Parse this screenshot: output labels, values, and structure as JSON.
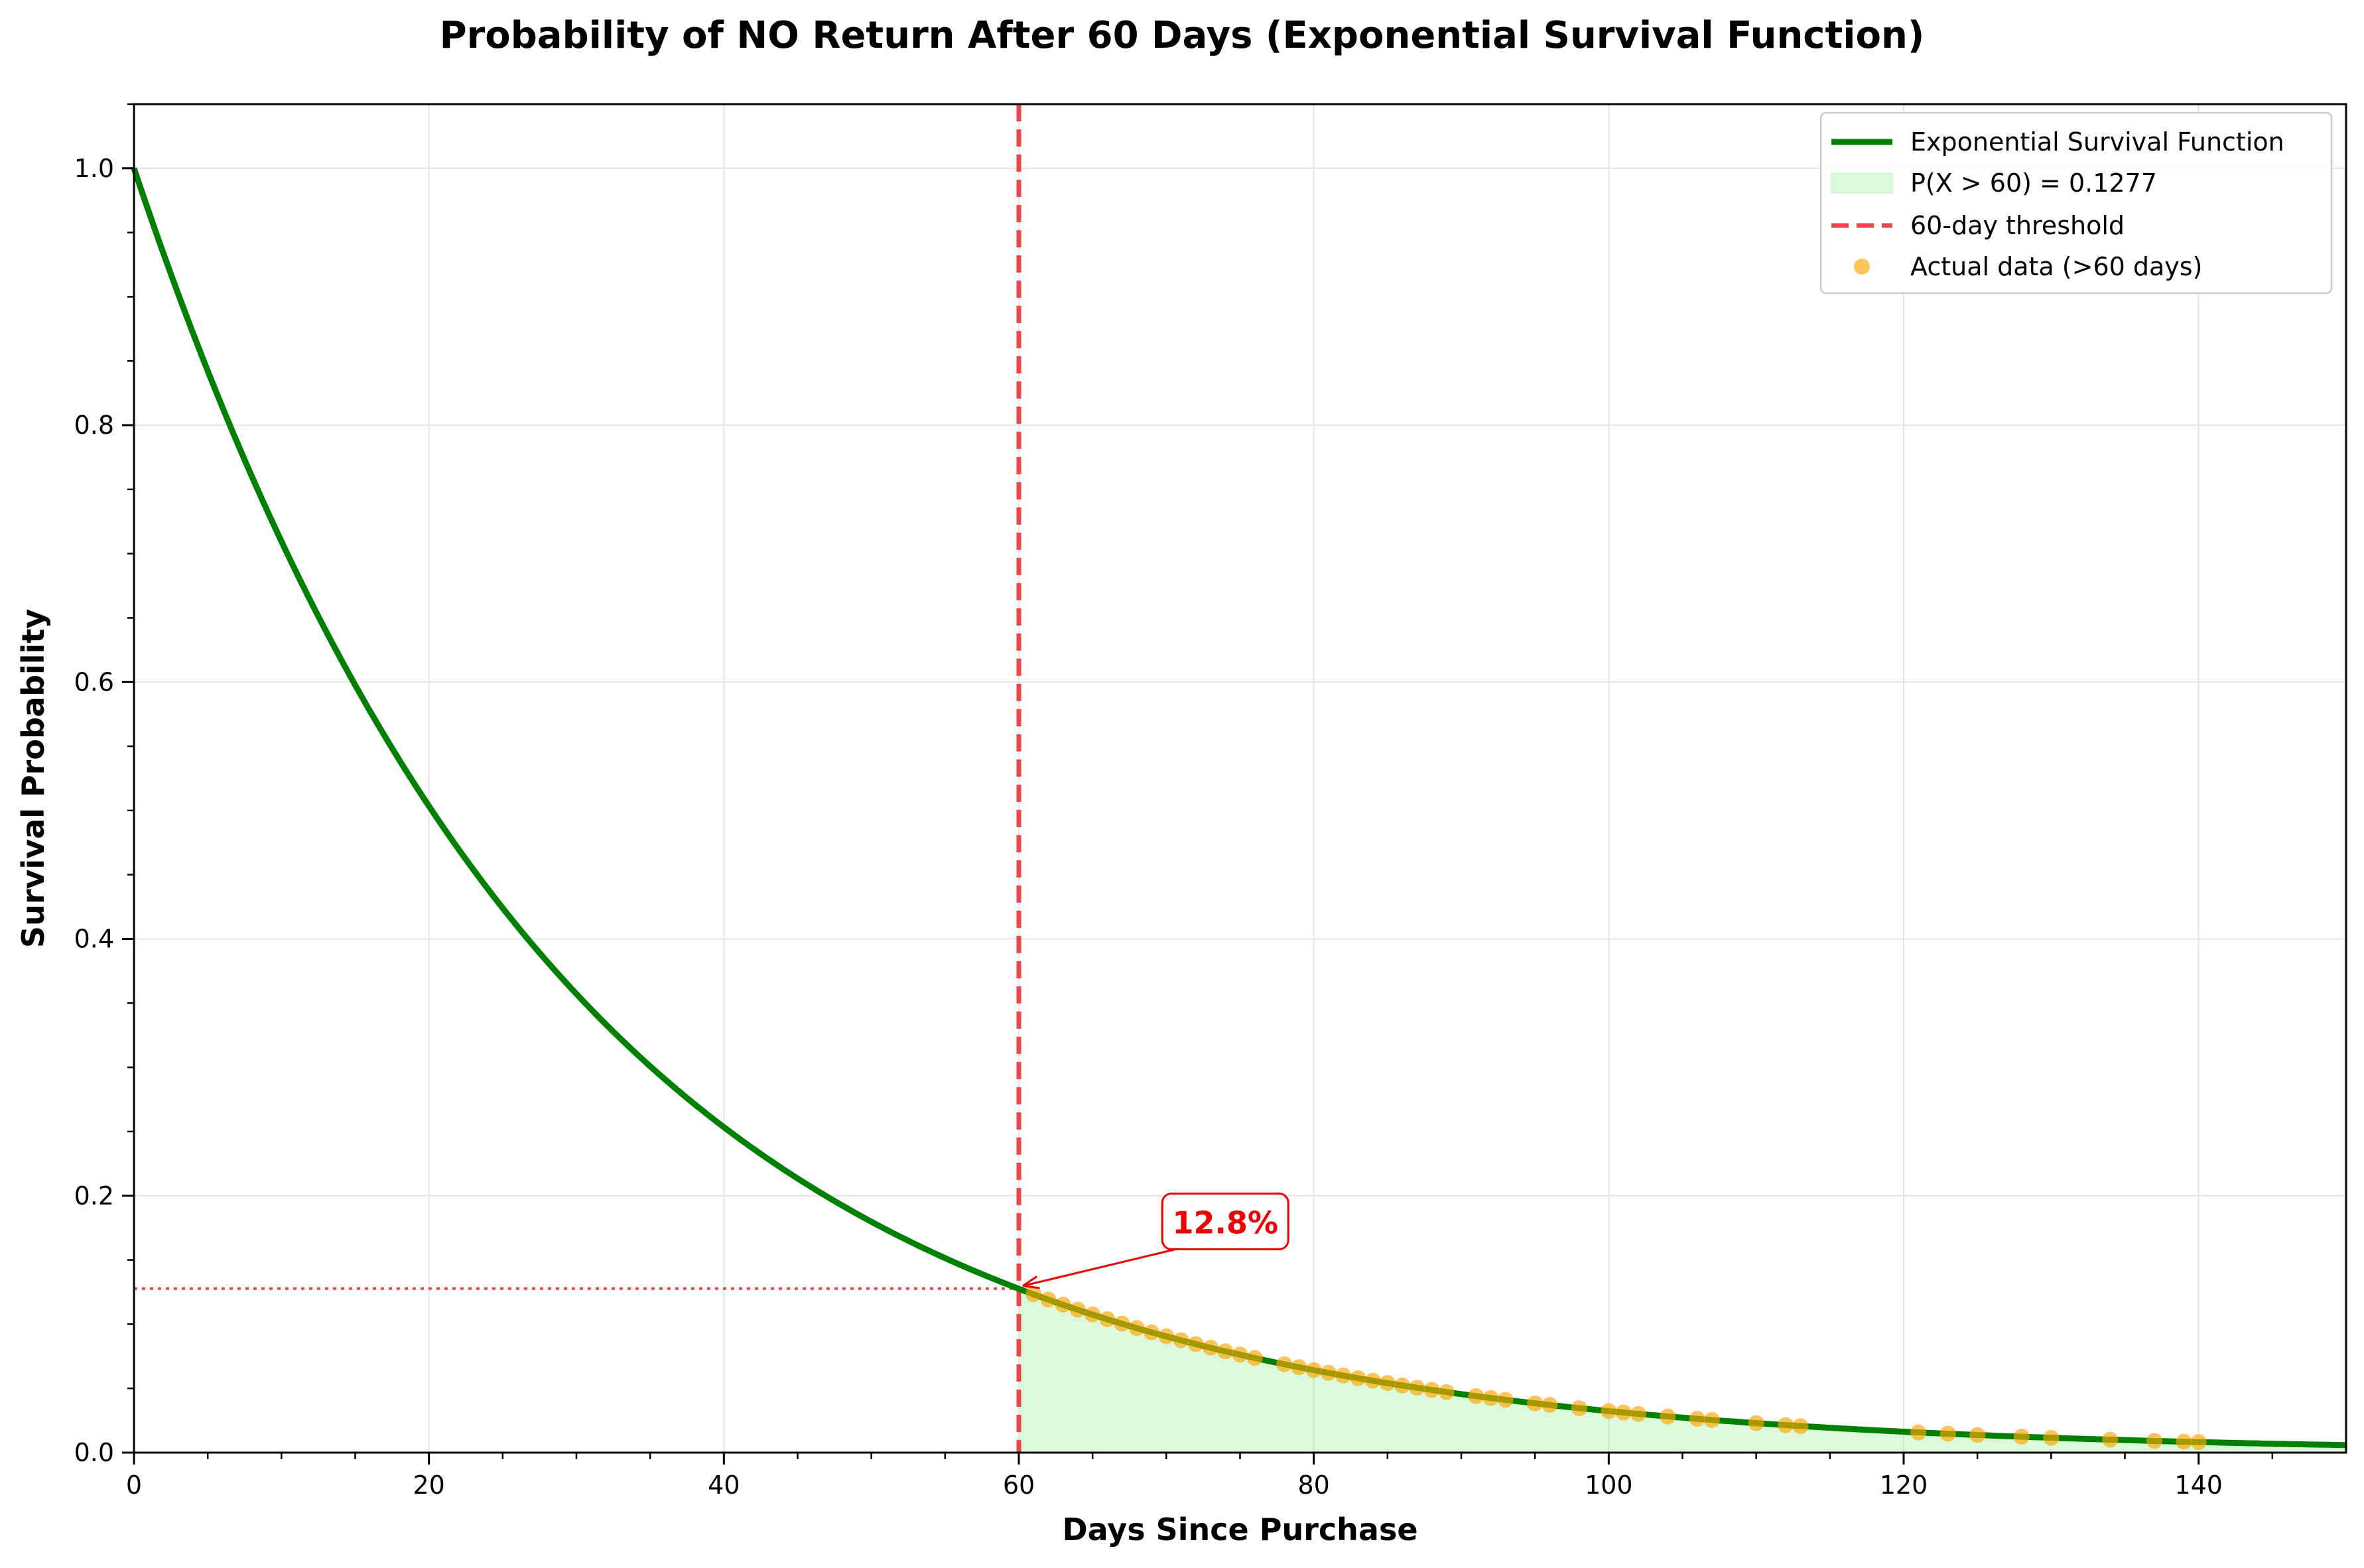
{
  "chart_data": {
    "type": "line",
    "title": "Probability of NO Return After 60 Days (Exponential Survival Function)",
    "xlabel": "Days Since Purchase",
    "ylabel": "Survival Probability",
    "xlim": [
      0,
      150
    ],
    "ylim": [
      0,
      1.05
    ],
    "x_ticks": [
      0,
      20,
      40,
      60,
      80,
      100,
      120,
      140
    ],
    "y_ticks": [
      0.0,
      0.2,
      0.4,
      0.6,
      0.8,
      1.0
    ],
    "x_tick_labels": [
      "0",
      "20",
      "40",
      "60",
      "80",
      "100",
      "120",
      "140"
    ],
    "y_tick_labels": [
      "0.0",
      "0.2",
      "0.4",
      "0.6",
      "0.8",
      "1.0"
    ],
    "grid": true,
    "legend_placement": "top-right",
    "curve": {
      "name": "Exponential Survival Function",
      "function": "exp(-lambda * x)",
      "lambda": 0.03432,
      "color": "#008000"
    },
    "shaded_area": {
      "name": "P(X > 60) = 0.1277",
      "from_x": 60,
      "to_x": 150,
      "color": "#90ee90"
    },
    "threshold": {
      "name": "60-day threshold",
      "x": 60,
      "y": 0.1277,
      "color": "#e8282d"
    },
    "scatter": {
      "name": "Actual data (>60 days)",
      "color": "#ffa500",
      "x": [
        61,
        62,
        63,
        64,
        65,
        66,
        67,
        68,
        69,
        70,
        71,
        72,
        73,
        74,
        75,
        76,
        78,
        79,
        80,
        81,
        82,
        83,
        84,
        85,
        86,
        87,
        88,
        89,
        91,
        92,
        93,
        95,
        96,
        98,
        100,
        101,
        102,
        104,
        106,
        107,
        110,
        112,
        113,
        121,
        123,
        125,
        128,
        130,
        134,
        137,
        139,
        140
      ],
      "y": [
        0.1234,
        0.1192,
        0.1152,
        0.1113,
        0.1076,
        0.1039,
        0.1004,
        0.097,
        0.0937,
        0.0906,
        0.0875,
        0.0845,
        0.0817,
        0.0789,
        0.0763,
        0.0737,
        0.0688,
        0.0665,
        0.0642,
        0.0621,
        0.06,
        0.0579,
        0.056,
        0.0541,
        0.0523,
        0.0505,
        0.0488,
        0.0471,
        0.044,
        0.0425,
        0.0411,
        0.0383,
        0.0371,
        0.0346,
        0.0323,
        0.0312,
        0.0301,
        0.0281,
        0.0263,
        0.0254,
        0.0229,
        0.0214,
        0.0206,
        0.0157,
        0.0147,
        0.0137,
        0.0124,
        0.0115,
        0.0101,
        0.0091,
        0.0085,
        0.0082
      ]
    },
    "annotation": {
      "text": "12.8%",
      "color": "#ee0000",
      "target_x": 60,
      "target_y": 0.1277,
      "text_x": 74,
      "text_y": 0.18
    }
  }
}
